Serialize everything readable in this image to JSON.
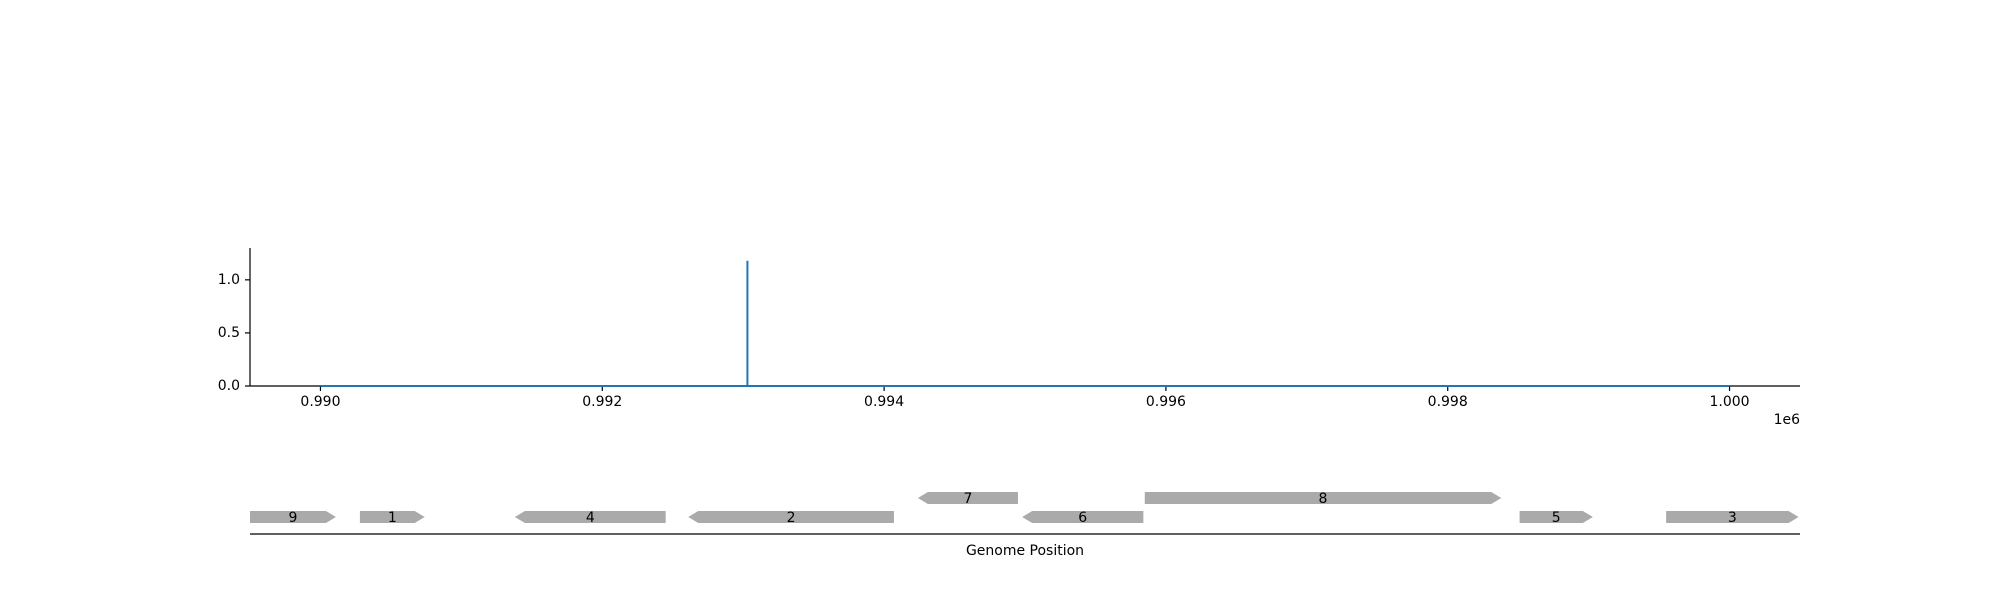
{
  "chart_data": {
    "type": "line",
    "title": "",
    "ylabel": "",
    "xlabel": "Genome Position",
    "x_offset_label": "1e6",
    "xlim": [
      0.9895,
      1.0005
    ],
    "ylim": [
      0,
      1.3
    ],
    "x_ticks": [
      {
        "value": 0.99,
        "label": "0.990"
      },
      {
        "value": 0.992,
        "label": "0.992"
      },
      {
        "value": 0.994,
        "label": "0.994"
      },
      {
        "value": 0.996,
        "label": "0.996"
      },
      {
        "value": 0.998,
        "label": "0.998"
      },
      {
        "value": 1.0,
        "label": "1.000"
      }
    ],
    "y_ticks": [
      {
        "value": 0.0,
        "label": "0.0"
      },
      {
        "value": 0.5,
        "label": "0.5"
      },
      {
        "value": 1.0,
        "label": "1.0"
      }
    ],
    "grid": false,
    "series": [
      {
        "color": "#1f77b4",
        "x": [
          0.99,
          0.99303,
          0.99303,
          0.99303,
          1.0
        ],
        "y": [
          0.0,
          0.0,
          1.18,
          0.0,
          0.0
        ]
      }
    ],
    "genes": [
      {
        "label": "9",
        "start": 0.9895,
        "end": 0.99011,
        "strand": "+",
        "row": 0
      },
      {
        "label": "1",
        "start": 0.99028,
        "end": 0.99074,
        "strand": "+",
        "row": 0
      },
      {
        "label": "4",
        "start": 0.99138,
        "end": 0.99245,
        "strand": "-",
        "row": 0
      },
      {
        "label": "2",
        "start": 0.99261,
        "end": 0.99407,
        "strand": "-",
        "row": 0
      },
      {
        "label": "7",
        "start": 0.99424,
        "end": 0.99495,
        "strand": "-",
        "row": 1
      },
      {
        "label": "6",
        "start": 0.99498,
        "end": 0.99584,
        "strand": "-",
        "row": 0
      },
      {
        "label": "8",
        "start": 0.99585,
        "end": 0.99838,
        "strand": "+",
        "row": 1
      },
      {
        "label": "5",
        "start": 0.99851,
        "end": 0.99903,
        "strand": "+",
        "row": 0
      },
      {
        "label": "3",
        "start": 0.99955,
        "end": 1.00049,
        "strand": "+",
        "row": 0
      }
    ],
    "colors": {
      "line": "#1f77b4",
      "gene": "#aaaaaa",
      "axis": "#000000"
    }
  }
}
